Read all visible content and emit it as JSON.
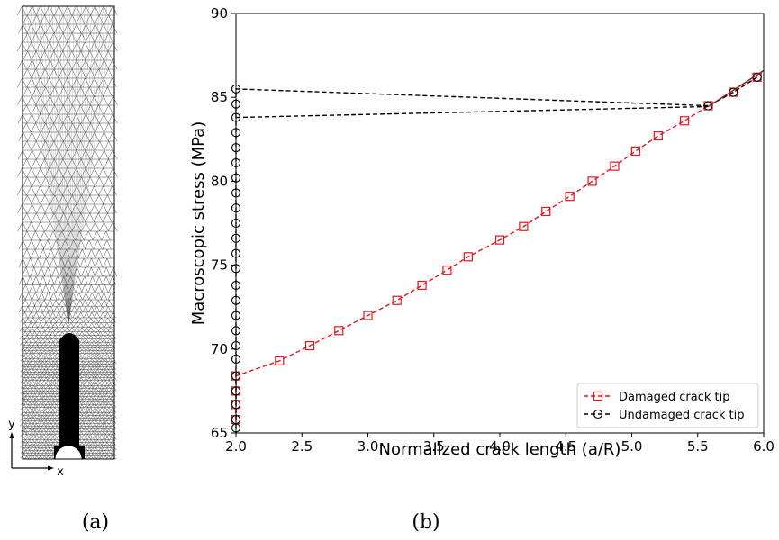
{
  "figure": {
    "panel_a_caption": "(a)",
    "panel_b_caption": "(b)"
  },
  "mesh_panel": {
    "y_axis_label": "y",
    "x_axis_label": "x"
  },
  "chart_data": {
    "type": "line",
    "xlabel": "Normalized crack length (a/R)",
    "ylabel": "Macroscopic stress (MPa)",
    "xlim": [
      2.0,
      6.0
    ],
    "ylim": [
      65,
      90
    ],
    "xticks": [
      2.0,
      2.5,
      3.0,
      3.5,
      4.0,
      4.5,
      5.0,
      5.5,
      6.0
    ],
    "xtick_labels": [
      "2.0",
      "2.5",
      "3.0",
      "3.5",
      "4.0",
      "4.5",
      "5.0",
      "5.5",
      "6.0"
    ],
    "yticks": [
      65,
      70,
      75,
      80,
      85,
      90
    ],
    "ytick_labels": [
      "65",
      "70",
      "75",
      "80",
      "85",
      "90"
    ],
    "grid": false,
    "legend_position": "lower-right",
    "series": [
      {
        "name": "Damaged crack tip",
        "color": "#e8141b",
        "linestyle": "dashed",
        "marker": "square",
        "x": [
          2.0,
          2.0,
          2.0,
          2.0,
          2.33,
          2.56,
          2.78,
          3.0,
          3.22,
          3.41,
          3.6,
          3.76,
          4.0,
          4.18,
          4.35,
          4.53,
          4.7,
          4.87,
          5.03,
          5.2,
          5.4,
          5.58,
          5.77,
          5.95
        ],
        "y": [
          65.8,
          66.7,
          67.5,
          68.4,
          69.3,
          70.2,
          71.1,
          72.0,
          72.9,
          73.8,
          74.7,
          75.5,
          76.5,
          77.3,
          78.2,
          79.1,
          80.0,
          80.9,
          81.8,
          82.7,
          83.6,
          84.5,
          85.3,
          86.2
        ]
      },
      {
        "name": "Undamaged crack tip",
        "color": "#000000",
        "linestyle": "dashed",
        "marker": "circle",
        "x": [
          2.0,
          2.0,
          2.0,
          2.0,
          2.0,
          2.0,
          2.0,
          2.0,
          2.0,
          2.0,
          2.0,
          2.0,
          2.0,
          2.0,
          2.0,
          2.0,
          2.0,
          2.0,
          2.0,
          2.0,
          2.0,
          2.0,
          2.0,
          2.0,
          5.58,
          5.77,
          5.95
        ],
        "y": [
          65.3,
          65.8,
          66.7,
          67.5,
          68.4,
          69.4,
          70.2,
          71.1,
          72.0,
          72.9,
          73.8,
          74.8,
          75.7,
          76.6,
          77.5,
          78.4,
          79.3,
          80.2,
          81.1,
          82.0,
          82.9,
          83.8,
          84.6,
          85.5,
          84.5,
          85.3,
          86.2
        ]
      },
      {
        "name": "",
        "color": "#000000",
        "linestyle": "dashed",
        "marker": "none",
        "x": [
          2.0,
          5.58
        ],
        "y": [
          83.8,
          84.45
        ]
      },
      {
        "name": "",
        "color": "#8b1a1a",
        "linestyle": "solid",
        "marker": "none",
        "x": [
          5.58,
          6.0
        ],
        "y": [
          84.45,
          86.6
        ]
      }
    ]
  }
}
